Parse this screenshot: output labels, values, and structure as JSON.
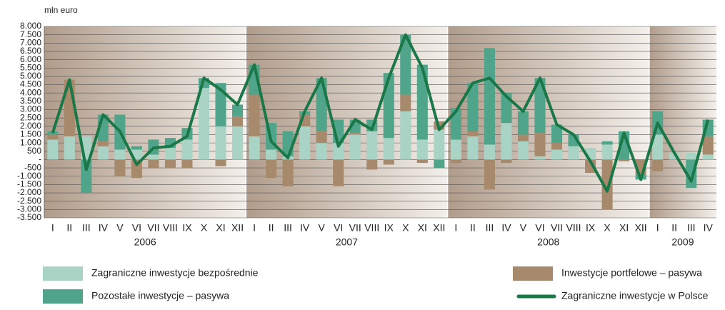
{
  "chart_data": {
    "type": "bar",
    "y_label": "mln euro",
    "categories": [
      "I",
      "II",
      "III",
      "IV",
      "V",
      "VI",
      "VII",
      "VIII",
      "IX",
      "X",
      "XI",
      "XII",
      "I",
      "II",
      "III",
      "IV",
      "V",
      "VI",
      "VII",
      "VIII",
      "IX",
      "X",
      "XI",
      "XII",
      "I",
      "II",
      "III",
      "IV",
      "V",
      "VI",
      "VII",
      "VIII",
      "IX",
      "X",
      "XI",
      "XII",
      "I",
      "II",
      "III",
      "IV"
    ],
    "groups": [
      "2006",
      "2007",
      "2008",
      "2009"
    ],
    "ylim": [
      -3500,
      8000
    ],
    "yticks": [
      {
        "value": 8000,
        "label": "8.000"
      },
      {
        "value": 7500,
        "label": "7.500"
      },
      {
        "value": 7000,
        "label": "7.000"
      },
      {
        "value": 6500,
        "label": "6.500"
      },
      {
        "value": 6000,
        "label": "6.000"
      },
      {
        "value": 5500,
        "label": "5.500"
      },
      {
        "value": 5000,
        "label": "5.000"
      },
      {
        "value": 4500,
        "label": "4.500"
      },
      {
        "value": 4000,
        "label": "4.000"
      },
      {
        "value": 3500,
        "label": "3.500"
      },
      {
        "value": 3000,
        "label": "3.000"
      },
      {
        "value": 2500,
        "label": "2.500"
      },
      {
        "value": 2000,
        "label": "2.000"
      },
      {
        "value": 1500,
        "label": "1.500"
      },
      {
        "value": 1000,
        "label": "1.000"
      },
      500,
      {
        "value": 0,
        "label": "-"
      },
      -500,
      {
        "value": -1000,
        "label": "-1.000"
      },
      {
        "value": -1500,
        "label": "-1.500"
      },
      {
        "value": -2000,
        "label": "-2.000"
      },
      {
        "value": -2500,
        "label": "-2.500"
      },
      {
        "value": -3000,
        "label": "-3.000"
      },
      {
        "value": -3500,
        "label": "-3.500"
      }
    ],
    "grid": true,
    "series": [
      {
        "name": "Zagraniczne inwestycje bezpośrednie",
        "kind": "bar",
        "color": "#a9d3c4",
        "values": [
          1200,
          1400,
          1400,
          800,
          600,
          600,
          300,
          700,
          1200,
          4300,
          2000,
          2000,
          1400,
          600,
          200,
          2000,
          1000,
          1000,
          1500,
          1700,
          1300,
          2900,
          1200,
          1800,
          1200,
          1400,
          900,
          2200,
          1100,
          200,
          600,
          800,
          700,
          900,
          0,
          0,
          1500,
          400,
          400,
          300
        ]
      },
      {
        "name": "Inwestycje portfelowe – pasywa",
        "kind": "bar",
        "color": "#a68a6b",
        "values": [
          300,
          3400,
          0,
          300,
          -1000,
          -1100,
          -500,
          -500,
          -500,
          0,
          -400,
          600,
          2500,
          -1100,
          -1600,
          700,
          700,
          -1600,
          100,
          -600,
          -300,
          1000,
          -200,
          500,
          -200,
          300,
          -1800,
          -200,
          400,
          1400,
          400,
          0,
          -800,
          -3000,
          -100,
          -900,
          -700,
          0,
          0,
          1100
        ]
      },
      {
        "name": "Pozostałe inwestycje – pasywa",
        "kind": "bar",
        "color": "#4fa48a",
        "values": [
          200,
          0,
          -2000,
          1600,
          2100,
          200,
          900,
          600,
          700,
          600,
          2600,
          700,
          1800,
          1600,
          1500,
          200,
          3200,
          1400,
          800,
          700,
          3900,
          3600,
          4500,
          -500,
          1900,
          2900,
          5800,
          1800,
          1400,
          3300,
          1100,
          700,
          0,
          200,
          1700,
          -300,
          1400,
          0,
          -1700,
          1000
        ]
      },
      {
        "name": "Zagraniczne inwestycje w Polsce",
        "kind": "line",
        "color": "#1a7748",
        "values": [
          1600,
          4800,
          -600,
          2700,
          1700,
          -300,
          700,
          800,
          1400,
          4900,
          4200,
          3300,
          5700,
          1100,
          100,
          2900,
          4900,
          800,
          2400,
          1800,
          4900,
          7500,
          5500,
          1800,
          2900,
          4600,
          4900,
          3800,
          2900,
          4900,
          2100,
          1500,
          -100,
          -1900,
          1600,
          -1200,
          2200,
          400,
          -1300,
          2400
        ]
      }
    ]
  }
}
